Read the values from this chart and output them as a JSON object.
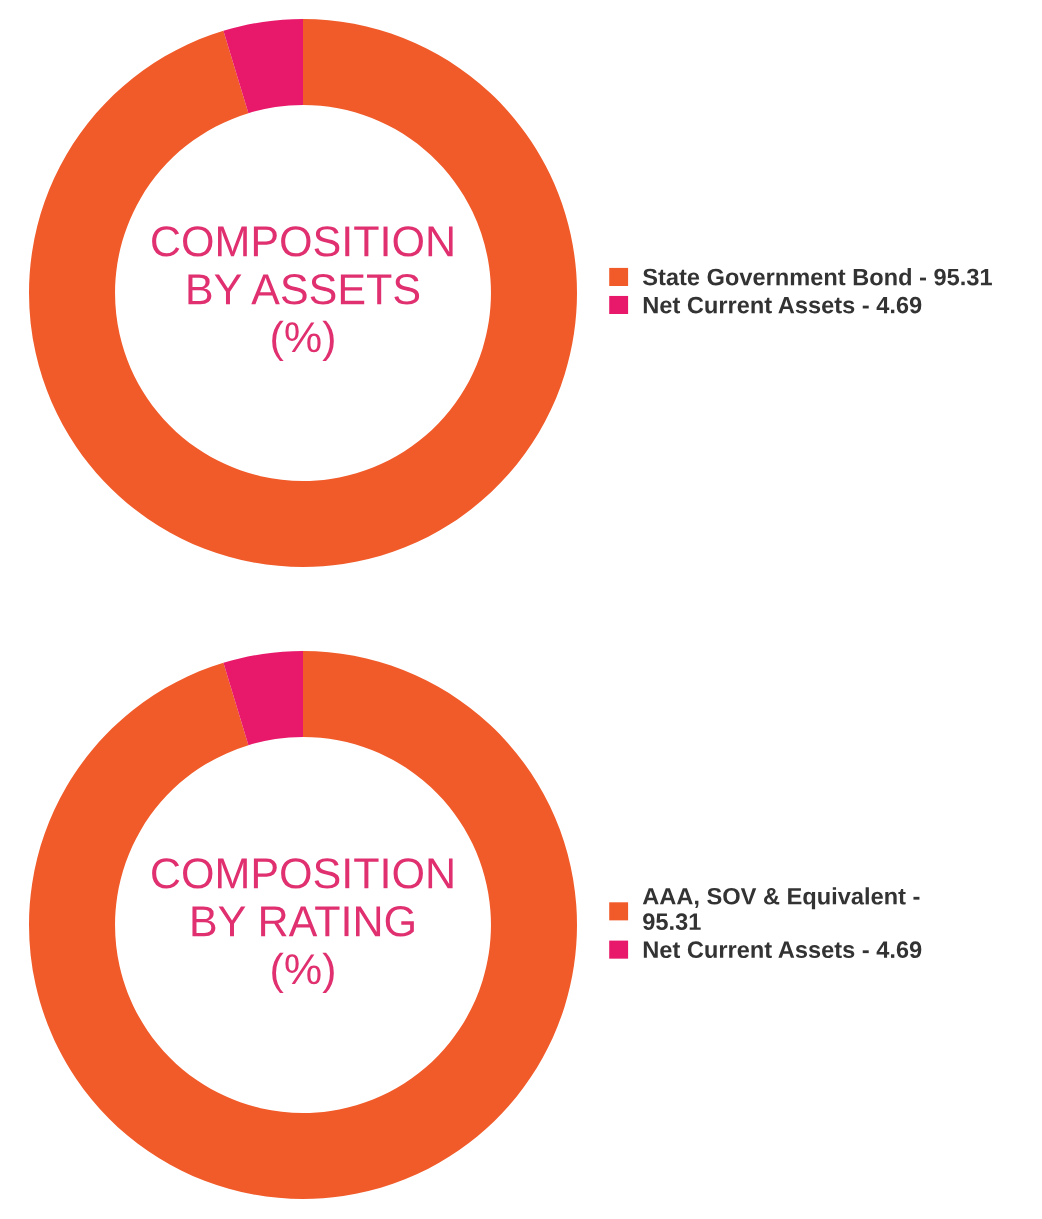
{
  "chart_data": [
    {
      "type": "donut",
      "title": "COMPOSITION\nBY ASSETS\n(%)",
      "categories": [
        "State Government Bond - 95.31",
        "Net Current Assets - 4.69"
      ],
      "values": [
        95.31,
        4.69
      ],
      "colors": [
        "#f15a29",
        "#e8196a"
      ],
      "legend": "right"
    },
    {
      "type": "donut",
      "title": "COMPOSITION\nBY RATING\n(%)",
      "categories": [
        "AAA, SOV & Equivalent -\n95.31",
        "Net Current Assets - 4.69"
      ],
      "values": [
        95.31,
        4.69
      ],
      "colors": [
        "#f15a29",
        "#e8196a"
      ],
      "legend": "right"
    }
  ]
}
